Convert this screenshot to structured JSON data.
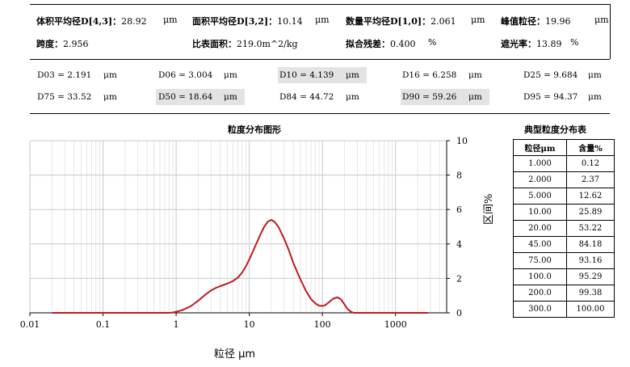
{
  "summary": {
    "row1": [
      {
        "label": "体积平均径D[4,3]：",
        "value": "28.92",
        "unit": "μm"
      },
      {
        "label": "面积平均径D[3,2]：",
        "value": "10.14",
        "unit": "μm"
      },
      {
        "label": "数量平均径D[1,0]：",
        "value": "2.061",
        "unit": "μm"
      },
      {
        "label": "峰值粒径：",
        "value": "19.96",
        "unit": "μm"
      }
    ],
    "row2": [
      {
        "label": "跨度：",
        "value": "2.956",
        "unit": ""
      },
      {
        "label": "比表面积：",
        "value": "219.0m^2/kg",
        "unit": ""
      },
      {
        "label": "拟合残差：",
        "value": "0.400",
        "unit": "%"
      },
      {
        "label": "遮光率：",
        "value": "13.89",
        "unit": "%"
      }
    ]
  },
  "dvalues": {
    "row1": [
      {
        "label": "D03 = 2.191",
        "unit": "μm",
        "highlight": false
      },
      {
        "label": "D06 = 3.004",
        "unit": "μm",
        "highlight": false
      },
      {
        "label": "D10 = 4.139",
        "unit": "μm",
        "highlight": true
      },
      {
        "label": "D16 = 6.258",
        "unit": "μm",
        "highlight": false
      },
      {
        "label": "D25 = 9.684",
        "unit": "μm",
        "highlight": false
      }
    ],
    "row2": [
      {
        "label": "D75 = 33.52",
        "unit": "μm",
        "highlight": false
      },
      {
        "label": "D50 = 18.64",
        "unit": "μm",
        "highlight": true
      },
      {
        "label": "D84 = 44.72",
        "unit": "μm",
        "highlight": false
      },
      {
        "label": "D90 = 59.26",
        "unit": "μm",
        "highlight": true
      },
      {
        "label": "D95 = 94.37",
        "unit": "μm",
        "highlight": false
      }
    ]
  },
  "chart_data": {
    "type": "line",
    "title": "粒度分布图形",
    "xlabel": "粒径 μm",
    "ylabel": "区间%",
    "xscale": "log",
    "xlim": [
      0.01,
      5000
    ],
    "ylim": [
      0,
      10
    ],
    "x_ticks": [
      "0.01",
      "0.1",
      "1",
      "10",
      "100",
      "1000"
    ],
    "y_ticks": [
      "0",
      "2",
      "4",
      "6",
      "8",
      "10"
    ],
    "y_axis_side": "right",
    "grid": true,
    "line_color": "#c0191c",
    "series": [
      {
        "x": [
          0.02,
          0.1,
          0.5,
          0.8,
          0.9,
          1.2,
          1.6,
          2.0,
          2.5,
          3.0,
          3.5,
          4.0,
          5.0,
          6.0,
          7.0,
          8.0,
          9.0,
          10.0,
          12.0,
          14.0,
          16.0,
          18.0,
          20.0,
          22.0,
          25.0,
          30.0,
          35.0,
          40.0,
          50.0,
          60.0,
          70.0,
          80.0,
          90.0,
          100.0,
          110.0,
          120.0,
          140.0,
          160.0,
          180.0,
          200.0,
          220.0,
          250.0,
          270.0,
          300.0,
          500.0,
          1000.0,
          2800.0
        ],
        "y": [
          0,
          0,
          0,
          0,
          0.02,
          0.15,
          0.4,
          0.7,
          1.05,
          1.3,
          1.45,
          1.55,
          1.7,
          1.85,
          2.05,
          2.35,
          2.7,
          3.1,
          3.85,
          4.5,
          5.0,
          5.3,
          5.4,
          5.3,
          5.0,
          4.3,
          3.6,
          2.9,
          1.95,
          1.25,
          0.8,
          0.55,
          0.42,
          0.4,
          0.45,
          0.58,
          0.82,
          0.9,
          0.78,
          0.5,
          0.22,
          0.04,
          0,
          0,
          0,
          0,
          0
        ]
      }
    ]
  },
  "table": {
    "title": "典型粒度分布表",
    "headers": [
      "粒径μm",
      "含量%"
    ],
    "rows": [
      [
        "1.000",
        "0.12"
      ],
      [
        "2.000",
        "2.37"
      ],
      [
        "5.000",
        "12.62"
      ],
      [
        "10.00",
        "25.89"
      ],
      [
        "20.00",
        "53.22"
      ],
      [
        "45.00",
        "84.18"
      ],
      [
        "75.00",
        "93.16"
      ],
      [
        "100.0",
        "95.29"
      ],
      [
        "200.0",
        "99.38"
      ],
      [
        "300.0",
        "100.00"
      ]
    ]
  }
}
